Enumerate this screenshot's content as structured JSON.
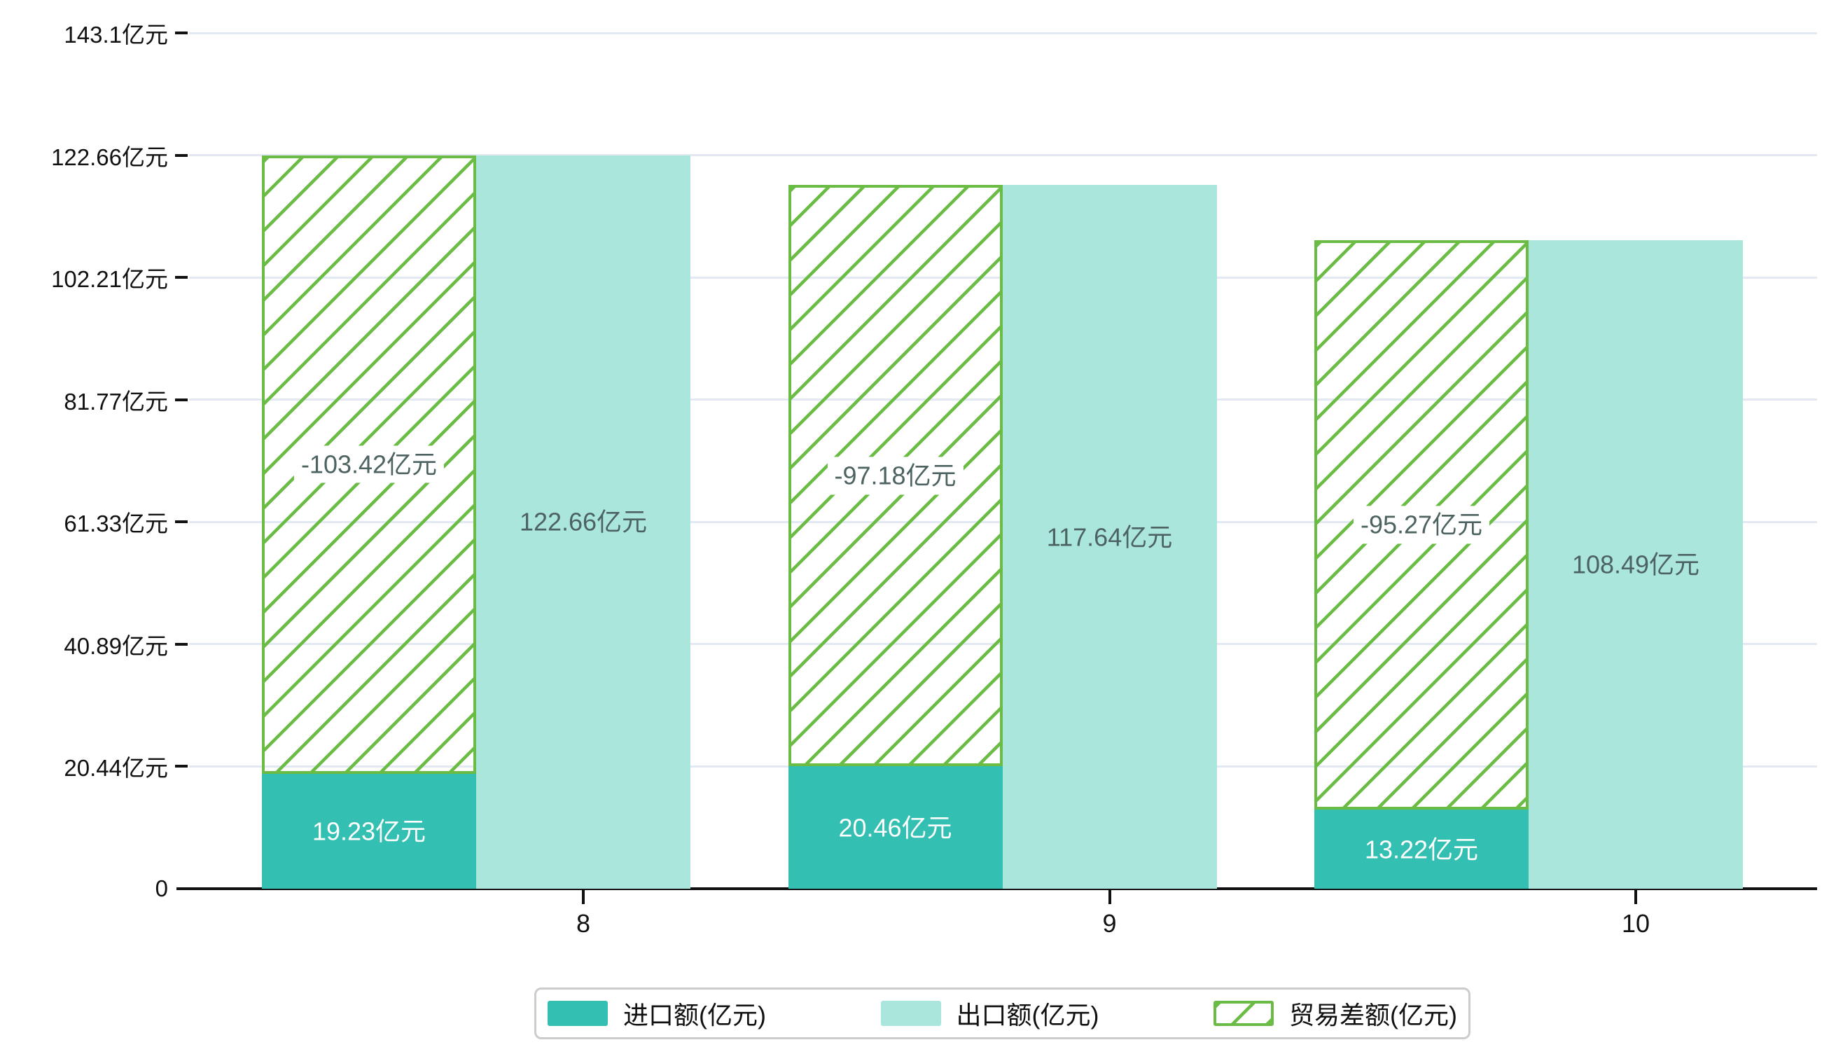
{
  "chart_data": {
    "type": "bar",
    "title": "",
    "categories": [
      "8",
      "9",
      "10"
    ],
    "series": [
      {
        "name": "进口额(亿元)",
        "role": "import",
        "color": "#33bfb2",
        "values": [
          19.23,
          20.46,
          13.22
        ],
        "labels": [
          "19.23亿元",
          "20.46亿元",
          "13.22亿元"
        ]
      },
      {
        "name": "出口额(亿元)",
        "role": "export",
        "color": "#abe6dd",
        "values": [
          122.66,
          117.64,
          108.49
        ],
        "labels": [
          "122.66亿元",
          "117.64亿元",
          "108.49亿元"
        ]
      },
      {
        "name": "贸易差额(亿元)",
        "role": "trade-balance",
        "color": "#6abc45",
        "pattern": "diagonal-hatch",
        "stacked_on": "进口额(亿元)",
        "values": [
          -103.42,
          -97.18,
          -95.27
        ],
        "labels": [
          "-103.42亿元",
          "-97.18亿元",
          "-95.27亿元"
        ]
      }
    ],
    "y_axis": {
      "max": 143.1,
      "ticks": [
        {
          "value": 0,
          "label": "0"
        },
        {
          "value": 20.44,
          "label": "20.44亿元"
        },
        {
          "value": 40.89,
          "label": "40.89亿元"
        },
        {
          "value": 61.33,
          "label": "61.33亿元"
        },
        {
          "value": 81.77,
          "label": "81.77亿元"
        },
        {
          "value": 102.21,
          "label": "102.21亿元"
        },
        {
          "value": 122.66,
          "label": "122.66亿元"
        },
        {
          "value": 143.1,
          "label": "143.1亿元"
        }
      ]
    },
    "x_axis": {
      "ticks": [
        "8",
        "9",
        "10"
      ]
    },
    "legend": {
      "position": "bottom",
      "items": [
        "进口额(亿元)",
        "出口额(亿元)",
        "贸易差额(亿元)"
      ]
    },
    "grid": true,
    "colors": {
      "import": "#33bfb2",
      "export": "#abe6dd",
      "trade_balance": "#6abc45",
      "bar_text_dark": "#4d6361",
      "bar_text_light": "#ffffff",
      "gridline": "#e3e9f2",
      "axis": "#111111"
    }
  }
}
